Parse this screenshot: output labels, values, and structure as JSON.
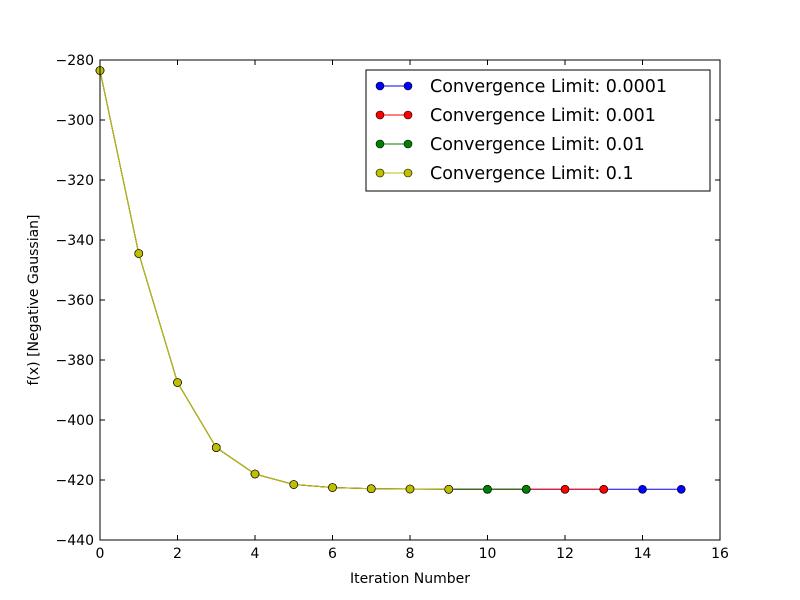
{
  "chart_data": {
    "type": "line",
    "title": "",
    "xlabel": "Iteration Number",
    "ylabel": "f(x) [Negative Gaussian]",
    "xlim": [
      0,
      16
    ],
    "ylim": [
      -440,
      -280
    ],
    "x_ticks": [
      0,
      2,
      4,
      6,
      8,
      10,
      12,
      14,
      16
    ],
    "y_ticks": [
      -280,
      -300,
      -320,
      -340,
      -360,
      -380,
      -400,
      -420,
      -440
    ],
    "x_tick_labels": [
      "0",
      "2",
      "4",
      "6",
      "8",
      "10",
      "12",
      "14",
      "16"
    ],
    "y_tick_labels": [
      "−280",
      "−300",
      "−320",
      "−340",
      "−360",
      "−380",
      "−400",
      "−420",
      "−440"
    ],
    "grid": false,
    "legend_position": "top-right",
    "series": [
      {
        "name": "Convergence Limit: 0.0001",
        "color": "#0000ff",
        "x": [
          0,
          1,
          2,
          3,
          4,
          5,
          6,
          7,
          8,
          9,
          10,
          11,
          12,
          13,
          14,
          15
        ],
        "values": [
          -283.5,
          -344.5,
          -387.5,
          -409.2,
          -418.0,
          -421.5,
          -422.5,
          -422.9,
          -423.0,
          -423.1,
          -423.1,
          -423.1,
          -423.1,
          -423.1,
          -423.1,
          -423.1
        ]
      },
      {
        "name": "Convergence Limit: 0.001",
        "color": "#ff0000",
        "x": [
          0,
          1,
          2,
          3,
          4,
          5,
          6,
          7,
          8,
          9,
          10,
          11,
          12,
          13
        ],
        "values": [
          -283.5,
          -344.5,
          -387.5,
          -409.2,
          -418.0,
          -421.5,
          -422.5,
          -422.9,
          -423.0,
          -423.1,
          -423.1,
          -423.1,
          -423.1,
          -423.1
        ]
      },
      {
        "name": "Convergence Limit: 0.01",
        "color": "#008000",
        "x": [
          0,
          1,
          2,
          3,
          4,
          5,
          6,
          7,
          8,
          9,
          10,
          11
        ],
        "values": [
          -283.5,
          -344.5,
          -387.5,
          -409.2,
          -418.0,
          -421.5,
          -422.5,
          -422.9,
          -423.0,
          -423.1,
          -423.1,
          -423.1
        ]
      },
      {
        "name": "Convergence Limit: 0.1",
        "color": "#bfbf00",
        "x": [
          0,
          1,
          2,
          3,
          4,
          5,
          6,
          7,
          8,
          9
        ],
        "values": [
          -283.5,
          -344.5,
          -387.5,
          -409.2,
          -418.0,
          -421.5,
          -422.5,
          -422.9,
          -423.0,
          -423.1
        ]
      }
    ]
  }
}
